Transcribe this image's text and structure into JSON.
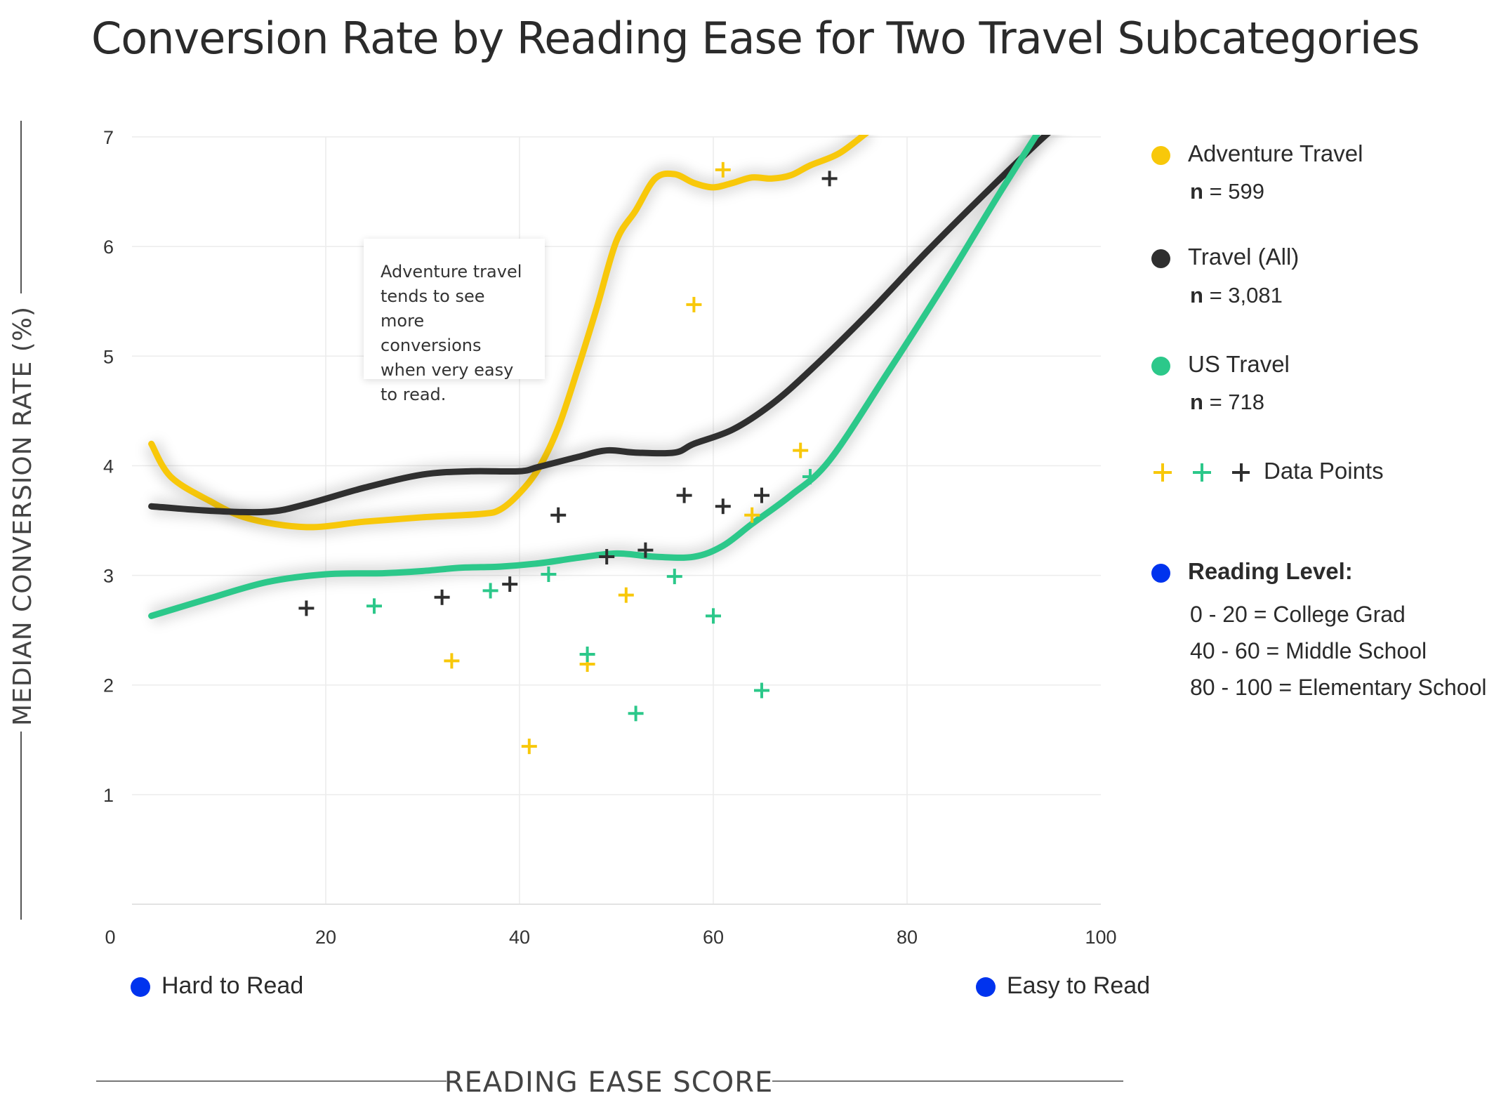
{
  "title": "Conversion Rate by Reading Ease for Two Travel Subcategories",
  "annotation": "Adventure travel tends to see more conversions when very easy to read.",
  "legend": {
    "adventure": {
      "label": "Adventure Travel",
      "n_label": "n",
      "n_value": "= 599",
      "color": "#f8c80a"
    },
    "all": {
      "label": "Travel (All)",
      "n_label": "n",
      "n_value": "= 3,081",
      "color": "#2f2f2f"
    },
    "us": {
      "label": "US Travel",
      "n_label": "n",
      "n_value": "= 718",
      "color": "#2cc88a"
    },
    "data_points_label": "Data Points",
    "reading_level_title": "Reading Level:",
    "reading_level_color": "#0033ee",
    "reading_levels": [
      "0 - 20 = College Grad",
      "40 - 60 = Middle School",
      "80 - 100 = Elementary School"
    ]
  },
  "ends": {
    "hard": "Hard to Read",
    "easy": "Easy to Read"
  },
  "chart_data": {
    "type": "line",
    "xlabel": "READING EASE SCORE",
    "ylabel": "MEDIAN CONVERSION RATE (%)",
    "xlim": [
      0,
      100
    ],
    "ylim": [
      0,
      7
    ],
    "xticks": [
      0,
      20,
      40,
      60,
      80,
      100
    ],
    "yticks": [
      1,
      2,
      3,
      4,
      5,
      6,
      7
    ],
    "grid": true,
    "legend_position": "right",
    "series": [
      {
        "name": "Adventure Travel",
        "color": "#f8c80a",
        "x": [
          2,
          4,
          8,
          12,
          18,
          24,
          30,
          36,
          38,
          40,
          42,
          44,
          46,
          48,
          50,
          52,
          54,
          56,
          58,
          60,
          62,
          64,
          66,
          68,
          70,
          73,
          76
        ],
        "y": [
          4.2,
          3.9,
          3.68,
          3.52,
          3.44,
          3.49,
          3.53,
          3.56,
          3.6,
          3.75,
          3.98,
          4.35,
          4.88,
          5.45,
          6.05,
          6.33,
          6.62,
          6.66,
          6.58,
          6.54,
          6.58,
          6.63,
          6.62,
          6.65,
          6.74,
          6.85,
          7.05
        ]
      },
      {
        "name": "Travel (All)",
        "color": "#2f2f2f",
        "x": [
          2,
          8,
          14,
          18,
          24,
          30,
          35,
          40,
          42,
          46,
          49,
          52,
          56,
          58,
          62,
          66,
          70,
          76,
          82,
          88,
          94,
          100
        ],
        "y": [
          3.63,
          3.59,
          3.58,
          3.65,
          3.8,
          3.92,
          3.95,
          3.95,
          3.99,
          4.08,
          4.14,
          4.12,
          4.12,
          4.2,
          4.33,
          4.56,
          4.87,
          5.39,
          5.95,
          6.48,
          6.99,
          7.45
        ]
      },
      {
        "name": "US Travel",
        "color": "#2cc88a",
        "x": [
          2,
          8,
          14,
          20,
          26,
          30,
          34,
          38,
          42,
          46,
          50,
          54,
          58,
          61,
          64,
          68,
          72,
          78,
          84,
          90,
          97
        ],
        "y": [
          2.63,
          2.79,
          2.94,
          3.01,
          3.02,
          3.04,
          3.07,
          3.08,
          3.11,
          3.16,
          3.2,
          3.17,
          3.17,
          3.27,
          3.47,
          3.73,
          4.05,
          4.85,
          5.68,
          6.55,
          7.52
        ]
      }
    ],
    "points": [
      {
        "series": "Adventure Travel",
        "x": [
          33,
          41,
          47,
          51,
          58,
          61,
          64,
          69
        ],
        "y": [
          2.22,
          1.44,
          2.19,
          2.82,
          5.47,
          6.7,
          3.55,
          4.14
        ]
      },
      {
        "series": "Travel (All)",
        "x": [
          18,
          32,
          39,
          44,
          49,
          53,
          57,
          61,
          65,
          72
        ],
        "y": [
          2.7,
          2.8,
          2.92,
          3.55,
          3.17,
          3.23,
          3.73,
          3.63,
          3.73,
          6.62
        ]
      },
      {
        "series": "US Travel",
        "x": [
          25,
          37,
          43,
          47,
          52,
          56,
          60,
          65,
          70
        ],
        "y": [
          2.72,
          2.86,
          3.01,
          2.28,
          1.74,
          2.99,
          2.63,
          1.95,
          3.9
        ]
      }
    ]
  }
}
